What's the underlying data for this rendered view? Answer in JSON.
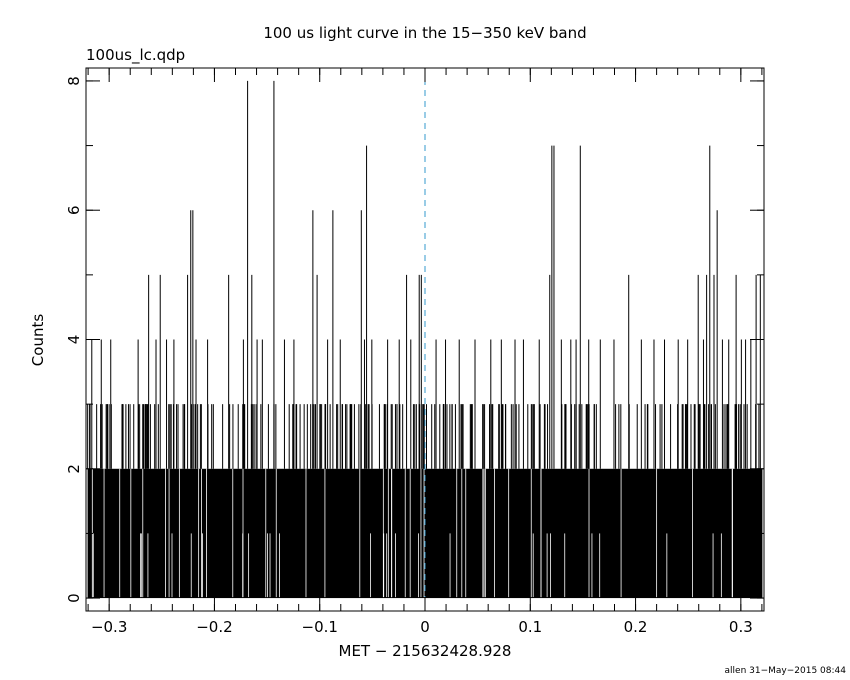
{
  "chart_data": {
    "type": "bar",
    "title": "100 us light curve in the 15−350 keV band",
    "file_label": "100us_lc.qdp",
    "xlabel": "MET − 215632428.928",
    "ylabel": "Counts",
    "footer": "allen 31−May−2015 08:44",
    "xlim": [
      -0.322,
      0.322
    ],
    "ylim": [
      -0.2,
      8.2
    ],
    "bin_width": 0.0001,
    "x_ticks": [
      {
        "value": -0.3,
        "label": "−0.3"
      },
      {
        "value": -0.2,
        "label": "−0.2"
      },
      {
        "value": -0.1,
        "label": "−0.1"
      },
      {
        "value": 0,
        "label": "0"
      },
      {
        "value": 0.1,
        "label": "0.1"
      },
      {
        "value": 0.2,
        "label": "0.2"
      },
      {
        "value": 0.3,
        "label": "0.3"
      }
    ],
    "y_ticks": [
      {
        "value": 0,
        "label": "0"
      },
      {
        "value": 2,
        "label": "2"
      },
      {
        "value": 4,
        "label": "4"
      },
      {
        "value": 6,
        "label": "6"
      },
      {
        "value": 8,
        "label": "8"
      }
    ],
    "trigger_line": {
      "x": 0,
      "color": "#3399cc",
      "style": "dashed"
    },
    "baseline_fill_counts": 2,
    "peaks": [
      {
        "x": -0.3165,
        "y": 4
      },
      {
        "x": -0.3075,
        "y": 4
      },
      {
        "x": -0.2985,
        "y": 4
      },
      {
        "x": -0.2725,
        "y": 4
      },
      {
        "x": -0.2625,
        "y": 5
      },
      {
        "x": -0.2555,
        "y": 4
      },
      {
        "x": -0.2515,
        "y": 5
      },
      {
        "x": -0.2455,
        "y": 4
      },
      {
        "x": -0.2385,
        "y": 4
      },
      {
        "x": -0.2255,
        "y": 5
      },
      {
        "x": -0.2225,
        "y": 6
      },
      {
        "x": -0.2205,
        "y": 6
      },
      {
        "x": -0.2175,
        "y": 4
      },
      {
        "x": -0.2065,
        "y": 4
      },
      {
        "x": -0.1865,
        "y": 5
      },
      {
        "x": -0.1725,
        "y": 4
      },
      {
        "x": -0.1685,
        "y": 8
      },
      {
        "x": -0.1645,
        "y": 5
      },
      {
        "x": -0.1595,
        "y": 4
      },
      {
        "x": -0.1545,
        "y": 4
      },
      {
        "x": -0.1435,
        "y": 8
      },
      {
        "x": -0.1335,
        "y": 4
      },
      {
        "x": -0.1245,
        "y": 4
      },
      {
        "x": -0.1065,
        "y": 6
      },
      {
        "x": -0.1025,
        "y": 5
      },
      {
        "x": -0.0925,
        "y": 4
      },
      {
        "x": -0.0875,
        "y": 6
      },
      {
        "x": -0.0805,
        "y": 4
      },
      {
        "x": -0.0605,
        "y": 6
      },
      {
        "x": -0.0575,
        "y": 4
      },
      {
        "x": -0.0555,
        "y": 7
      },
      {
        "x": -0.0505,
        "y": 4
      },
      {
        "x": -0.0355,
        "y": 4
      },
      {
        "x": -0.0245,
        "y": 4
      },
      {
        "x": -0.0175,
        "y": 5
      },
      {
        "x": -0.0135,
        "y": 4
      },
      {
        "x": -0.0055,
        "y": 5
      },
      {
        "x": -0.0035,
        "y": 5
      },
      {
        "x": 0.0105,
        "y": 4
      },
      {
        "x": 0.0195,
        "y": 4
      },
      {
        "x": 0.0325,
        "y": 4
      },
      {
        "x": 0.0475,
        "y": 4
      },
      {
        "x": 0.0625,
        "y": 4
      },
      {
        "x": 0.0725,
        "y": 4
      },
      {
        "x": 0.0855,
        "y": 4
      },
      {
        "x": 0.0935,
        "y": 4
      },
      {
        "x": 0.1085,
        "y": 4
      },
      {
        "x": 0.1185,
        "y": 5
      },
      {
        "x": 0.1205,
        "y": 7
      },
      {
        "x": 0.1225,
        "y": 7
      },
      {
        "x": 0.1295,
        "y": 4
      },
      {
        "x": 0.1385,
        "y": 4
      },
      {
        "x": 0.1435,
        "y": 4
      },
      {
        "x": 0.1475,
        "y": 7
      },
      {
        "x": 0.1555,
        "y": 4
      },
      {
        "x": 0.1665,
        "y": 4
      },
      {
        "x": 0.1795,
        "y": 4
      },
      {
        "x": 0.1935,
        "y": 5
      },
      {
        "x": 0.2055,
        "y": 4
      },
      {
        "x": 0.2175,
        "y": 4
      },
      {
        "x": 0.2275,
        "y": 4
      },
      {
        "x": 0.2405,
        "y": 4
      },
      {
        "x": 0.2495,
        "y": 4
      },
      {
        "x": 0.2595,
        "y": 5
      },
      {
        "x": 0.2645,
        "y": 4
      },
      {
        "x": 0.2675,
        "y": 5
      },
      {
        "x": 0.2705,
        "y": 7
      },
      {
        "x": 0.2745,
        "y": 5
      },
      {
        "x": 0.2775,
        "y": 6
      },
      {
        "x": 0.2825,
        "y": 4
      },
      {
        "x": 0.2885,
        "y": 4
      },
      {
        "x": 0.2955,
        "y": 5
      },
      {
        "x": 0.3005,
        "y": 4
      },
      {
        "x": 0.3045,
        "y": 4
      },
      {
        "x": 0.3095,
        "y": 4
      },
      {
        "x": 0.3145,
        "y": 5
      },
      {
        "x": 0.3185,
        "y": 5
      }
    ]
  }
}
